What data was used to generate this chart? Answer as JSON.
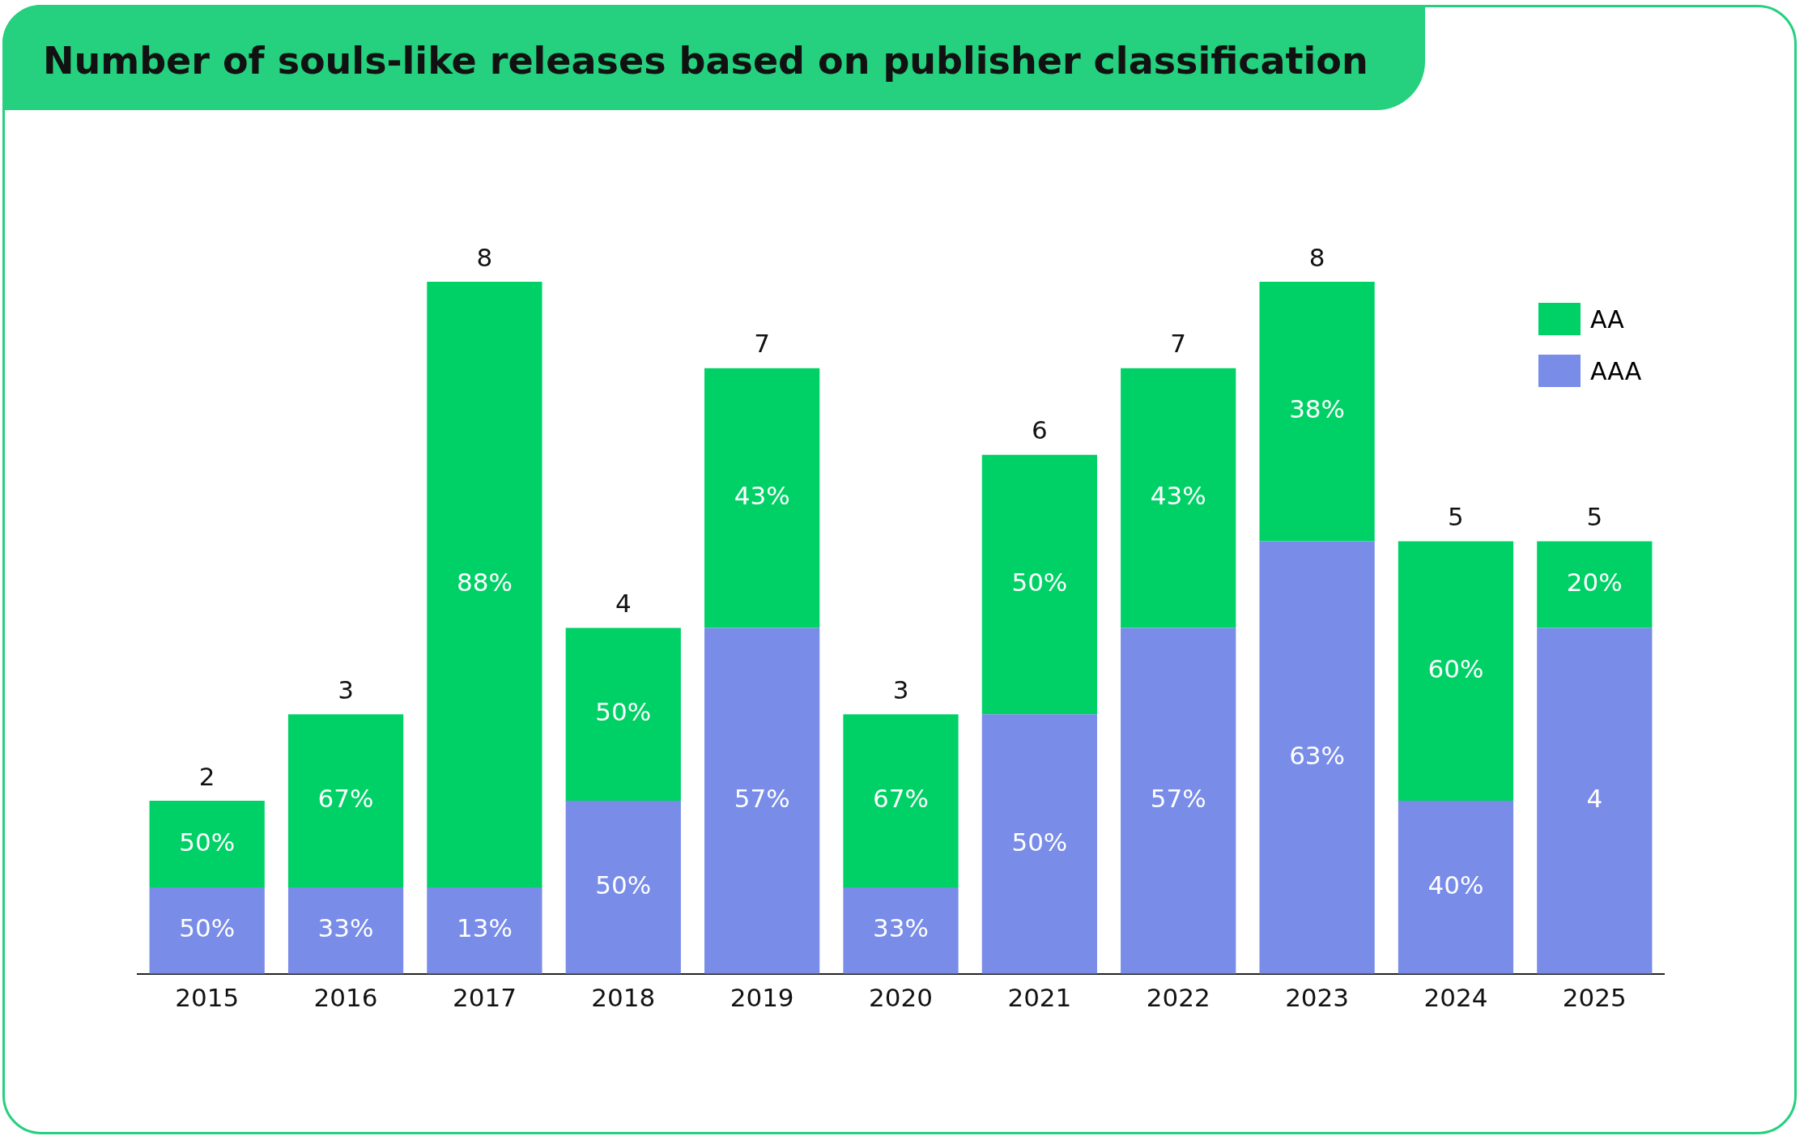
{
  "chart_data": {
    "type": "bar",
    "title": "Number of souls-like releases based on publisher classification",
    "categories": [
      "2015",
      "2016",
      "2017",
      "2018",
      "2019",
      "2020",
      "2021",
      "2022",
      "2023",
      "2024",
      "2025"
    ],
    "stacked": true,
    "legend": "top right",
    "grid": false,
    "series": [
      {
        "name": "AAA",
        "color": "#788ce8",
        "values": [
          1,
          1,
          1,
          2,
          4,
          1,
          3,
          4,
          5,
          2,
          4
        ],
        "value_labels": [
          null,
          null,
          null,
          null,
          null,
          null,
          null,
          null,
          null,
          null,
          "4"
        ]
      },
      {
        "name": "AA",
        "color": "#00d166",
        "values": [
          1,
          2,
          7,
          2,
          3,
          2,
          3,
          3,
          3,
          3,
          1
        ]
      }
    ],
    "totals": [
      "2",
      "3",
      "8",
      "4",
      "7",
      "3",
      "6",
      "7",
      "8",
      "5",
      "5"
    ],
    "annotations": [
      "50%",
      "33%",
      "13%",
      "50%",
      "57%",
      "33%",
      "50%",
      "57%",
      "63%",
      "40%",
      "50%",
      "67%",
      "88%",
      "50%",
      "43%",
      "67%",
      "50%",
      "43%",
      "38%",
      "60%",
      "20%"
    ]
  }
}
